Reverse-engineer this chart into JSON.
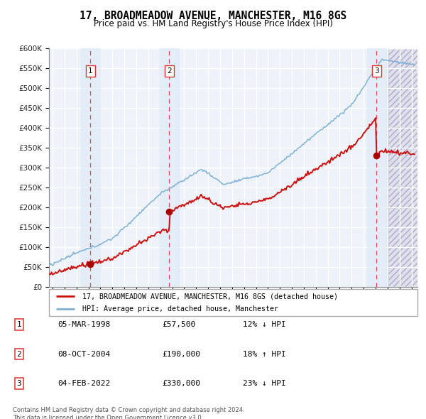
{
  "title": "17, BROADMEADOW AVENUE, MANCHESTER, M16 8GS",
  "subtitle": "Price paid vs. HM Land Registry's House Price Index (HPI)",
  "legend_line1": "17, BROADMEADOW AVENUE, MANCHESTER, M16 8GS (detached house)",
  "legend_line2": "HPI: Average price, detached house, Manchester",
  "sale1_t": 1998.17,
  "sale1_price": 57500,
  "sale2_t": 2004.75,
  "sale2_price": 190000,
  "sale3_t": 2022.08,
  "sale3_price": 330000,
  "hpi_line_color": "#7BAFD4",
  "price_line_color": "#CC1111",
  "sale_dot_color": "#AA0000",
  "dashed_line_color": "#DD3333",
  "background_plot": "#EEF3FA",
  "shade_color": "#DCE8F5",
  "future_shade_color": "#E0E0EC",
  "grid_color": "#FFFFFF",
  "ylim": [
    0,
    600000
  ],
  "yticks": [
    0,
    50000,
    100000,
    150000,
    200000,
    250000,
    300000,
    350000,
    400000,
    450000,
    500000,
    550000,
    600000
  ],
  "xlim_start": 1994.7,
  "xlim_end": 2025.5,
  "future_shade_start": 2023.08,
  "table_rows": [
    [
      "1",
      "05-MAR-1998",
      "£57,500",
      "12% ↓ HPI"
    ],
    [
      "2",
      "08-OCT-2004",
      "£190,000",
      "18% ↑ HPI"
    ],
    [
      "3",
      "04-FEB-2022",
      "£330,000",
      "23% ↓ HPI"
    ]
  ]
}
